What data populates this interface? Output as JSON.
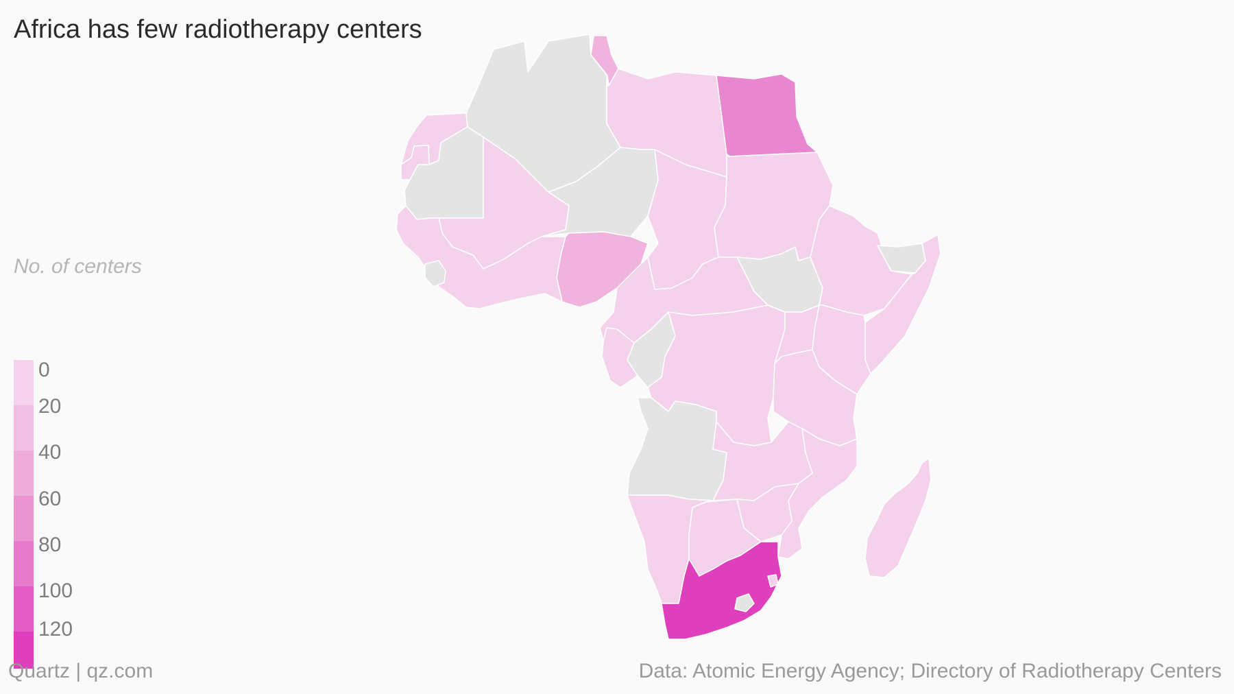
{
  "title": "Africa has few radiotherapy centers",
  "legend": {
    "title": "No. of centers",
    "bins": [
      {
        "label": "0",
        "color": "#f5d2ec"
      },
      {
        "label": "20",
        "color": "#f1bfe3"
      },
      {
        "label": "40",
        "color": "#eeaddb"
      },
      {
        "label": "60",
        "color": "#ea95d2"
      },
      {
        "label": "80",
        "color": "#e67acb"
      },
      {
        "label": "100",
        "color": "#e25cc4"
      },
      {
        "label": "120",
        "color": "#df3fbd"
      }
    ]
  },
  "colors": {
    "no_data": "#e4e4e4",
    "level_0": "#f5d2ec",
    "level_1": "#efb3de",
    "level_3": "#e886d0",
    "level_6": "#df3fbd"
  },
  "footer": {
    "source_credit": "Quartz | qz.com",
    "data_source": "Data: Atomic Energy Agency; Directory of Radiotherapy Centers"
  },
  "chart_data": {
    "type": "choropleth",
    "region": "Africa",
    "legend_title": "No. of centers",
    "scale_ticks": [
      0,
      20,
      40,
      60,
      80,
      100,
      120
    ],
    "regions": [
      {
        "name": "Morocco",
        "bin": "0-20"
      },
      {
        "name": "Western Sahara",
        "bin": "0-20"
      },
      {
        "name": "Algeria",
        "bin": "no data"
      },
      {
        "name": "Tunisia",
        "bin": "20-40"
      },
      {
        "name": "Libya",
        "bin": "0-20"
      },
      {
        "name": "Egypt",
        "bin": "60-80"
      },
      {
        "name": "Mauritania",
        "bin": "no data"
      },
      {
        "name": "Mali",
        "bin": "0-20"
      },
      {
        "name": "Niger",
        "bin": "no data"
      },
      {
        "name": "Chad",
        "bin": "0-20"
      },
      {
        "name": "Sudan",
        "bin": "0-20"
      },
      {
        "name": "South Sudan",
        "bin": "no data"
      },
      {
        "name": "Nigeria",
        "bin": "20-40"
      },
      {
        "name": "Guinea",
        "bin": "no data"
      },
      {
        "name": "Ethiopia",
        "bin": "0-20"
      },
      {
        "name": "Somalia",
        "bin": "0-20"
      },
      {
        "name": "Somaliland",
        "bin": "no data"
      },
      {
        "name": "Kenya",
        "bin": "0-20"
      },
      {
        "name": "DR Congo",
        "bin": "0-20"
      },
      {
        "name": "Congo",
        "bin": "no data"
      },
      {
        "name": "Gabon",
        "bin": "no data"
      },
      {
        "name": "Tanzania",
        "bin": "0-20"
      },
      {
        "name": "Angola",
        "bin": "no data"
      },
      {
        "name": "Zambia",
        "bin": "0-20"
      },
      {
        "name": "Namibia",
        "bin": "0-20"
      },
      {
        "name": "Botswana",
        "bin": "0-20"
      },
      {
        "name": "Zimbabwe",
        "bin": "0-20"
      },
      {
        "name": "Mozambique",
        "bin": "0-20"
      },
      {
        "name": "Madagascar",
        "bin": "0-20"
      },
      {
        "name": "South Africa",
        "bin": "100-120"
      },
      {
        "name": "Lesotho",
        "bin": "no data"
      }
    ]
  }
}
